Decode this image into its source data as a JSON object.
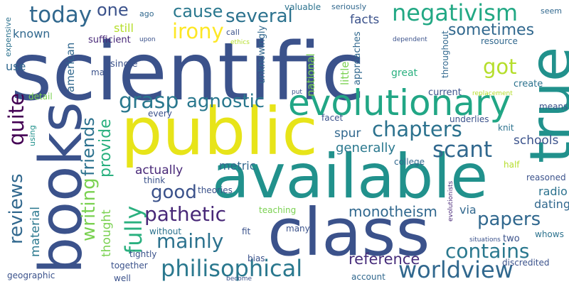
{
  "words": [
    {
      "text": "scientific",
      "color": "#3b528b"
    },
    {
      "text": "public",
      "color": "#e7e419"
    },
    {
      "text": "available",
      "color": "#21918c"
    },
    {
      "text": "books",
      "color": "#3b528b"
    },
    {
      "text": "class",
      "color": "#3b528b"
    },
    {
      "text": "true",
      "color": "#21918c"
    },
    {
      "text": "evolutionary",
      "color": "#21a685"
    },
    {
      "text": "philisophical",
      "color": "#2a788e"
    },
    {
      "text": "worldview",
      "color": "#31688e"
    },
    {
      "text": "several",
      "color": "#2c728e"
    },
    {
      "text": "negativism",
      "color": "#22a884"
    },
    {
      "text": "today",
      "color": "#31688e"
    },
    {
      "text": "cause",
      "color": "#2a788e"
    },
    {
      "text": "irony",
      "color": "#fde725"
    },
    {
      "text": "one",
      "color": "#3b528b"
    },
    {
      "text": "grasp",
      "color": "#2a788e"
    },
    {
      "text": "agnostic",
      "color": "#2a788e"
    },
    {
      "text": "got",
      "color": "#b5de2b"
    },
    {
      "text": "quite",
      "color": "#440154"
    },
    {
      "text": "chapters",
      "color": "#2c728e"
    },
    {
      "text": "scant",
      "color": "#31688e"
    },
    {
      "text": "reviews",
      "color": "#31688e"
    },
    {
      "text": "writing",
      "color": "#7ad151"
    },
    {
      "text": "friends",
      "color": "#2c728e"
    },
    {
      "text": "fully",
      "color": "#2ab07f"
    },
    {
      "text": "provide",
      "color": "#2ab07f"
    },
    {
      "text": "pathetic",
      "color": "#482878"
    },
    {
      "text": "papers",
      "color": "#31688e"
    },
    {
      "text": "mainly",
      "color": "#2c728e"
    },
    {
      "text": "contains",
      "color": "#2a788e"
    },
    {
      "text": "monotheism",
      "color": "#31688e"
    },
    {
      "text": "reference",
      "color": "#472d7b"
    },
    {
      "text": "sometimes",
      "color": "#31688e"
    },
    {
      "text": "good",
      "color": "#3b528b"
    },
    {
      "text": "generally",
      "color": "#2a788e"
    },
    {
      "text": "spur",
      "color": "#31688e"
    },
    {
      "text": "actually",
      "color": "#482878"
    },
    {
      "text": "material",
      "color": "#2a788e"
    },
    {
      "text": "thought",
      "color": "#7ad151"
    },
    {
      "text": "metric",
      "color": "#31688e"
    },
    {
      "text": "radio",
      "color": "#2c728e"
    },
    {
      "text": "dating",
      "color": "#31688e"
    },
    {
      "text": "via",
      "color": "#31688e"
    },
    {
      "text": "schools",
      "color": "#3b528b"
    },
    {
      "text": "facts",
      "color": "#3b528b"
    },
    {
      "text": "known",
      "color": "#31688e"
    },
    {
      "text": "still",
      "color": "#b5de2b"
    },
    {
      "text": "use",
      "color": "#31688e"
    },
    {
      "text": "american",
      "color": "#31688e"
    },
    {
      "text": "national",
      "color": "#7ad151"
    },
    {
      "text": "little",
      "color": "#7ad151"
    },
    {
      "text": "approaches",
      "color": "#31688e"
    },
    {
      "text": "unknowingly",
      "color": "#31688e"
    },
    {
      "text": "sufficient",
      "color": "#482878"
    },
    {
      "text": "single",
      "color": "#3b528b"
    },
    {
      "text": "may",
      "color": "#3b528b"
    },
    {
      "text": "detail",
      "color": "#7ad151"
    },
    {
      "text": "ago",
      "color": "#31688e"
    },
    {
      "text": "call",
      "color": "#3b528b"
    },
    {
      "text": "valuable",
      "color": "#2c728e"
    },
    {
      "text": "seriously",
      "color": "#31688e"
    },
    {
      "text": "resource",
      "color": "#31688e"
    },
    {
      "text": "throughout",
      "color": "#31688e"
    },
    {
      "text": "seem",
      "color": "#31688e"
    },
    {
      "text": "expensive",
      "color": "#2c728e"
    },
    {
      "text": "upon",
      "color": "#3b528b"
    },
    {
      "text": "ethics",
      "color": "#b5de2b"
    },
    {
      "text": "dependent",
      "color": "#3b528b"
    },
    {
      "text": "great",
      "color": "#2ab07f"
    },
    {
      "text": "current",
      "color": "#3b528b"
    },
    {
      "text": "create",
      "color": "#2c728e"
    },
    {
      "text": "replacement",
      "color": "#b5de2b"
    },
    {
      "text": "put",
      "color": "#3b528b"
    },
    {
      "text": "every",
      "color": "#3b528b"
    },
    {
      "text": "facet",
      "color": "#3b528b"
    },
    {
      "text": "underlies",
      "color": "#3b528b"
    },
    {
      "text": "means",
      "color": "#3b528b"
    },
    {
      "text": "knit",
      "color": "#2c728e"
    },
    {
      "text": "using",
      "color": "#21918c"
    },
    {
      "text": "college",
      "color": "#31688e"
    },
    {
      "text": "half",
      "color": "#b5de2b"
    },
    {
      "text": "think",
      "color": "#3b528b"
    },
    {
      "text": "theories",
      "color": "#3b528b"
    },
    {
      "text": "reasoned",
      "color": "#3b528b"
    },
    {
      "text": "evolutionists",
      "color": "#482878"
    },
    {
      "text": "teaching",
      "color": "#7ad151"
    },
    {
      "text": "without",
      "color": "#2c728e"
    },
    {
      "text": "fit",
      "color": "#3b528b"
    },
    {
      "text": "many",
      "color": "#3b528b"
    },
    {
      "text": "situations",
      "color": "#3b528b"
    },
    {
      "text": "whows",
      "color": "#2c728e"
    },
    {
      "text": "two",
      "color": "#3b528b"
    },
    {
      "text": "tightly",
      "color": "#3b528b"
    },
    {
      "text": "together",
      "color": "#3b528b"
    },
    {
      "text": "bias",
      "color": "#3b528b"
    },
    {
      "text": "discredited",
      "color": "#3b528b"
    },
    {
      "text": "geographic",
      "color": "#3b528b"
    },
    {
      "text": "well",
      "color": "#3b528b"
    },
    {
      "text": "become",
      "color": "#3b528b"
    },
    {
      "text": "account",
      "color": "#31688e"
    }
  ]
}
